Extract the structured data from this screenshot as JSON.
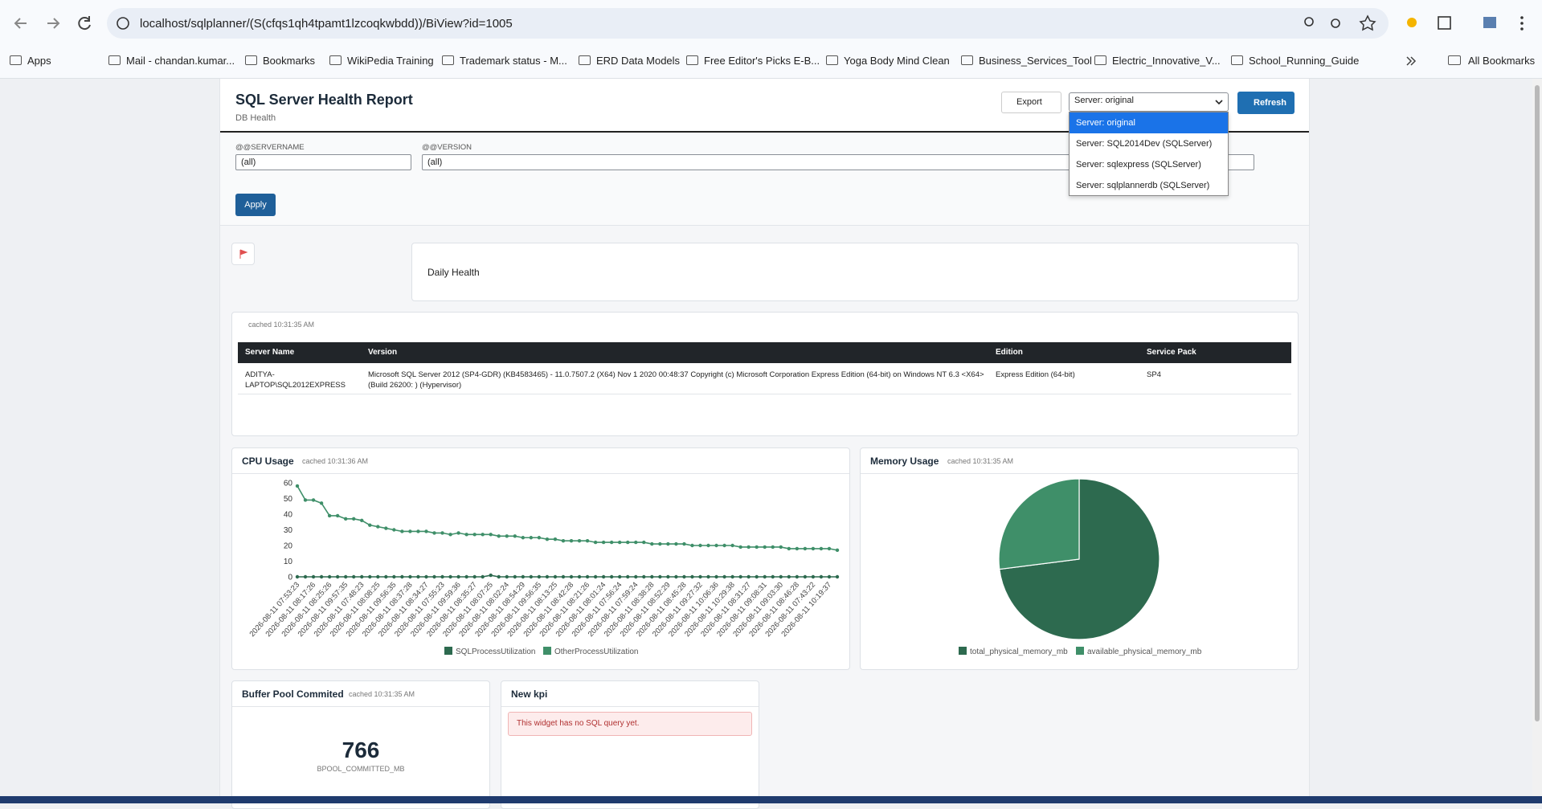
{
  "browser": {
    "url": "localhost/sqlplanner/(S(cfqs1qh4tpamt1lzcoqkwbdd))/BiView?id=1005",
    "bookmarks": [
      "Apps",
      "Mail - chandan.kumar...",
      "Bookmarks",
      "WikiPedia Training",
      "Trademark status - M...",
      "ERD Data Models",
      "Free Editor's Picks E-B...",
      "Yoga Body Mind Clean",
      "Business_Services_Tool",
      "Electric_Innovative_V...",
      "School_Running_Guide"
    ],
    "all_bookmarks": "All Bookmarks"
  },
  "header": {
    "title": "SQL Server Health Report",
    "subtitle": "DB Health",
    "export": "Export",
    "refresh": "Refresh",
    "server_select": {
      "value": "Server: original",
      "options": [
        "Server: original",
        "Server: SQL2014Dev (SQLServer)",
        "Server: sqlexpress (SQLServer)",
        "Server: sqlplannerdb (SQLServer)"
      ]
    }
  },
  "filters": [
    {
      "label": "@@SERVERNAME",
      "value": "(all)"
    },
    {
      "label": "@@VERSION",
      "value": "(all)"
    }
  ],
  "apply": "Apply",
  "daily_health": "Daily Health",
  "table": {
    "cached": "cached 10:31:35 AM",
    "columns": [
      "Server Name",
      "Version",
      "Edition",
      "Service Pack"
    ],
    "rows": [
      [
        "ADITYA-LAPTOP\\SQL2012EXPRESS",
        "Microsoft SQL Server 2012 (SP4-GDR) (KB4583465) - 11.0.7507.2 (X64) Nov 1 2020 00:48:37 Copyright (c) Microsoft Corporation Express Edition (64-bit) on Windows NT 6.3 <X64> (Build 26200: ) (Hypervisor)",
        "Express Edition (64-bit)",
        "SP4"
      ]
    ]
  },
  "chart_data": [
    {
      "type": "line",
      "title": "CPU Usage",
      "subtitle": "cached 10:31:36 AM",
      "categories": [
        "2026-08-11 07:53:23",
        null,
        "2026-08-11 08:17:26",
        null,
        "2026-08-11 08:25:26",
        null,
        "2026-08-11 09:57:35",
        null,
        "2026-08-11 07:48:23",
        null,
        "2026-08-11 08:08:25",
        null,
        "2026-08-11 09:56:35",
        null,
        "2026-08-11 08:37:28",
        null,
        "2026-08-11 08:34:27",
        null,
        "2026-08-11 07:55:23",
        null,
        "2026-08-11 09:59:36",
        null,
        "2026-08-11 08:35:27",
        null,
        "2026-08-11 08:07:25",
        null,
        "2026-08-11 08:02:24",
        null,
        "2026-08-11 08:54:29",
        null,
        "2026-08-11 09:56:35",
        null,
        "2026-08-11 08:13:25",
        null,
        "2026-08-11 08:42:28",
        null,
        "2026-08-11 08:21:26",
        null,
        "2026-08-11 08:01:24",
        null,
        "2026-08-11 07:56:24",
        null,
        "2026-08-11 07:59:24",
        null,
        "2026-08-11 08:38:28",
        null,
        "2026-08-11 08:52:29",
        null,
        "2026-08-11 08:45:28",
        null,
        "2026-08-11 09:27:32",
        null,
        "2026-08-11 10:06:36",
        null,
        "2026-08-11 10:29:38",
        null,
        "2026-08-11 08:31:27",
        null,
        "2026-08-11 09:08:31",
        null,
        "2026-08-11 09:03:30",
        null,
        "2026-08-11 08:46:28",
        null,
        "2026-08-11 07:43:22",
        null,
        "2026-08-11 10:19:37",
        null
      ],
      "series": [
        {
          "name": "SQLProcessUtilization",
          "color": "#2d6a4f",
          "values": [
            0,
            0,
            0,
            0,
            0,
            0,
            0,
            0,
            0,
            0,
            0,
            0,
            0,
            0,
            0,
            0,
            0,
            0,
            0,
            0,
            0,
            0,
            0,
            0,
            1,
            0,
            0,
            0,
            0,
            0,
            0,
            0,
            0,
            0,
            0,
            0,
            0,
            0,
            0,
            0,
            0,
            0,
            0,
            0,
            0,
            0,
            0,
            0,
            0,
            0,
            0,
            0,
            0,
            0,
            0,
            0,
            0,
            0,
            0,
            0,
            0,
            0,
            0,
            0,
            0,
            0,
            0,
            0
          ]
        },
        {
          "name": "OtherProcessUtilization",
          "color": "#3f8f69",
          "values": [
            58,
            49,
            49,
            47,
            39,
            39,
            37,
            37,
            36,
            33,
            32,
            31,
            30,
            29,
            29,
            29,
            29,
            28,
            28,
            27,
            28,
            27,
            27,
            27,
            27,
            26,
            26,
            26,
            25,
            25,
            25,
            24,
            24,
            23,
            23,
            23,
            23,
            22,
            22,
            22,
            22,
            22,
            22,
            22,
            21,
            21,
            21,
            21,
            21,
            20,
            20,
            20,
            20,
            20,
            20,
            19,
            19,
            19,
            19,
            19,
            19,
            18,
            18,
            18,
            18,
            18,
            18,
            17
          ]
        }
      ],
      "ylim": [
        0,
        60
      ],
      "yticks": [
        0,
        10,
        20,
        30,
        40,
        50,
        60
      ],
      "grid": false,
      "legend": "bottom"
    },
    {
      "type": "pie",
      "title": "Memory Usage",
      "subtitle": "cached 10:31:35 AM",
      "categories": [
        "total_physical_memory_mb",
        "available_physical_memory_mb"
      ],
      "values": [
        73,
        27
      ],
      "colors": [
        "#2d6a4f",
        "#3f8f69"
      ],
      "legend": "bottom"
    }
  ],
  "kpis": [
    {
      "title": "Buffer Pool Commited",
      "cached": "cached 10:31:35 AM",
      "value": 766,
      "label": "BPOOL_COMMITTED_MB"
    },
    {
      "title": "New kpi",
      "message": "This widget has no SQL query yet."
    }
  ]
}
